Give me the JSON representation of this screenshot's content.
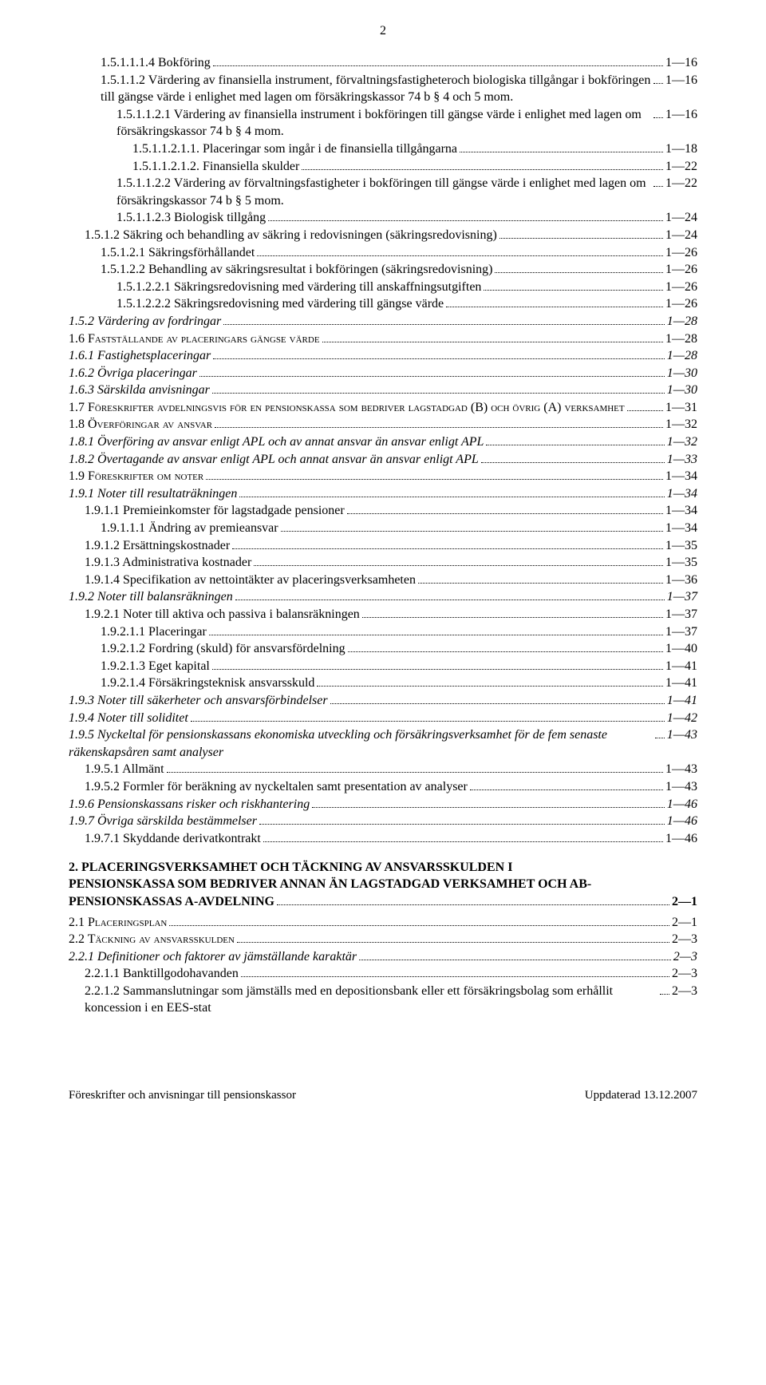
{
  "page_number_top": "2",
  "toc": [
    {
      "indent": 2,
      "style": "",
      "label": "1.5.1.1.1.4 Bokföring",
      "page": "1—16"
    },
    {
      "indent": 2,
      "style": "",
      "label": "1.5.1.1.2 Värdering av finansiella instrument, förvaltningsfastigheteroch biologiska tillgångar i bokföringen till gängse värde i enlighet med lagen om försäkringskassor 74 b § 4 och 5 mom.",
      "page": "1—16"
    },
    {
      "indent": 3,
      "style": "",
      "label": "1.5.1.1.2.1 Värdering av finansiella instrument i bokföringen till gängse värde i enlighet med lagen om försäkringskassor 74 b § 4 mom.",
      "page": "1—16"
    },
    {
      "indent": 4,
      "style": "",
      "label": "1.5.1.1.2.1.1. Placeringar som ingår i de finansiella tillgångarna",
      "page": "1—18"
    },
    {
      "indent": 4,
      "style": "",
      "label": "1.5.1.1.2.1.2. Finansiella skulder",
      "page": "1—22"
    },
    {
      "indent": 3,
      "style": "",
      "label": "1.5.1.1.2.2 Värdering av förvaltningsfastigheter i bokföringen till gängse värde i enlighet med lagen om försäkringskassor 74 b § 5 mom.",
      "page": "1—22"
    },
    {
      "indent": 3,
      "style": "",
      "label": "1.5.1.1.2.3 Biologisk tillgång",
      "page": "1—24"
    },
    {
      "indent": 1,
      "style": "",
      "label": "1.5.1.2 Säkring och behandling av säkring i redovisningen (säkringsredovisning)",
      "page": "1—24"
    },
    {
      "indent": 2,
      "style": "",
      "label": "1.5.1.2.1 Säkringsförhållandet",
      "page": "1—26"
    },
    {
      "indent": 2,
      "style": "",
      "label": "1.5.1.2.2 Behandling av säkringsresultat i bokföringen (säkringsredovisning)",
      "page": "1—26"
    },
    {
      "indent": 3,
      "style": "",
      "label": "1.5.1.2.2.1 Säkringsredovisning med värdering till anskaffningsutgiften",
      "page": "1—26"
    },
    {
      "indent": 3,
      "style": "",
      "label": "1.5.1.2.2.2 Säkringsredovisning med värdering till gängse värde",
      "page": "1—26"
    },
    {
      "indent": 0,
      "style": "italic",
      "label": "1.5.2 Värdering av fordringar",
      "page": "1—28"
    },
    {
      "indent": 0,
      "style": "smallcaps",
      "label": "1.6 Fastställande av placeringars gängse värde",
      "page": "1—28"
    },
    {
      "indent": 0,
      "style": "italic",
      "label": "1.6.1 Fastighetsplaceringar",
      "page": "1—28"
    },
    {
      "indent": 0,
      "style": "italic",
      "label": "1.6.2 Övriga placeringar",
      "page": "1—30"
    },
    {
      "indent": 0,
      "style": "italic",
      "label": "1.6.3 Särskilda anvisningar",
      "page": "1—30"
    },
    {
      "indent": 0,
      "style": "smallcaps",
      "label": "1.7 Föreskrifter avdelningsvis för en pensionskassa som bedriver lagstadgad (B) och övrig (A) verksamhet",
      "page": "1—31"
    },
    {
      "indent": 0,
      "style": "smallcaps",
      "label": "1.8 Överföringar av ansvar",
      "page": "1—32"
    },
    {
      "indent": 0,
      "style": "italic",
      "label": "1.8.1 Överföring av ansvar enligt APL och av annat ansvar än ansvar enligt APL",
      "page": "1—32"
    },
    {
      "indent": 0,
      "style": "italic",
      "label": "1.8.2 Övertagande av ansvar enligt APL och annat ansvar än ansvar enligt APL",
      "page": "1—33"
    },
    {
      "indent": 0,
      "style": "smallcaps",
      "label": "1.9 Föreskrifter om noter",
      "page": "1—34"
    },
    {
      "indent": 0,
      "style": "italic",
      "label": "1.9.1 Noter till resultaträkningen",
      "page": "1—34"
    },
    {
      "indent": 1,
      "style": "",
      "label": "1.9.1.1 Premieinkomster för lagstadgade pensioner",
      "page": "1—34"
    },
    {
      "indent": 2,
      "style": "",
      "label": "1.9.1.1.1 Ändring av premieansvar",
      "page": "1—34"
    },
    {
      "indent": 1,
      "style": "",
      "label": "1.9.1.2 Ersättningskostnader",
      "page": "1—35"
    },
    {
      "indent": 1,
      "style": "",
      "label": "1.9.1.3 Administrativa kostnader",
      "page": "1—35"
    },
    {
      "indent": 1,
      "style": "",
      "label": "1.9.1.4 Specifikation av nettointäkter av placeringsverksamheten",
      "page": "1—36"
    },
    {
      "indent": 0,
      "style": "italic",
      "label": "1.9.2 Noter till balansräkningen",
      "page": "1—37"
    },
    {
      "indent": 1,
      "style": "",
      "label": "1.9.2.1 Noter till aktiva och passiva i balansräkningen",
      "page": "1—37"
    },
    {
      "indent": 2,
      "style": "",
      "label": "1.9.2.1.1 Placeringar",
      "page": "1—37"
    },
    {
      "indent": 2,
      "style": "",
      "label": "1.9.2.1.2 Fordring (skuld) för ansvarsfördelning",
      "page": "1—40"
    },
    {
      "indent": 2,
      "style": "",
      "label": "1.9.2.1.3 Eget kapital",
      "page": "1—41"
    },
    {
      "indent": 2,
      "style": "",
      "label": "1.9.2.1.4 Försäkringsteknisk ansvarsskuld",
      "page": "1—41"
    },
    {
      "indent": 0,
      "style": "italic",
      "label": "1.9.3 Noter till säkerheter och ansvarsförbindelser",
      "page": "1—41"
    },
    {
      "indent": 0,
      "style": "italic",
      "label": "1.9.4 Noter till soliditet",
      "page": "1—42"
    },
    {
      "indent": 0,
      "style": "italic",
      "label": "1.9.5 Nyckeltal för pensionskassans ekonomiska utveckling och försäkringsverksamhet för de fem senaste räkenskapsåren samt analyser",
      "page": "1—43"
    },
    {
      "indent": 1,
      "style": "",
      "label": "1.9.5.1 Allmänt",
      "page": "1—43"
    },
    {
      "indent": 1,
      "style": "",
      "label": "1.9.5.2 Formler för beräkning av nyckeltalen samt presentation av analyser",
      "page": "1—43"
    },
    {
      "indent": 0,
      "style": "italic",
      "label": "1.9.6 Pensionskassans risker och riskhantering",
      "page": "1—46"
    },
    {
      "indent": 0,
      "style": "italic",
      "label": "1.9.7 Övriga särskilda bestämmelser",
      "page": "1—46"
    },
    {
      "indent": 1,
      "style": "",
      "label": "1.9.7.1 Skyddande derivatkontrakt",
      "page": "1—46"
    }
  ],
  "section2": {
    "heading_lines": [
      "2. PLACERINGSVERKSAMHET OCH TÄCKNING AV ANSVARSSKULDEN I",
      "PENSIONSKASSA SOM BEDRIVER ANNAN ÄN LAGSTADGAD VERKSAMHET OCH AB-"
    ],
    "heading_last_line": "PENSIONSKASSAS A-AVDELNING",
    "heading_page": "2—1",
    "items": [
      {
        "indent": 0,
        "style": "smallcaps",
        "label": "2.1 Placeringsplan",
        "page": "2—1"
      },
      {
        "indent": 0,
        "style": "smallcaps",
        "label": "2.2 Täckning av ansvarsskulden",
        "page": "2—3"
      },
      {
        "indent": 0,
        "style": "italic",
        "label": "2.2.1 Definitioner och faktorer av jämställande karaktär",
        "page": "2—3"
      },
      {
        "indent": 1,
        "style": "",
        "label": "2.2.1.1 Banktillgodohavanden",
        "page": "2—3"
      },
      {
        "indent": 1,
        "style": "",
        "label": "2.2.1.2 Sammanslutningar som jämställs med en depositionsbank eller ett försäkringsbolag som erhållit koncession i en EES-stat",
        "page": "2—3"
      }
    ]
  },
  "footer": {
    "left": "Föreskrifter och anvisningar till pensionskassor",
    "right": "Uppdaterad 13.12.2007"
  }
}
